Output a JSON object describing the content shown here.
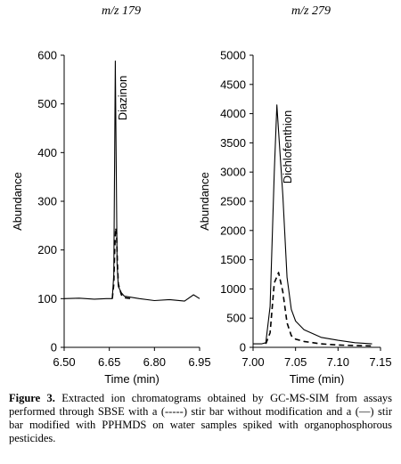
{
  "chart_data": [
    {
      "type": "line",
      "title": "m/z 179",
      "xlabel": "Time (min)",
      "ylabel": "Abundance",
      "xlim": [
        6.5,
        6.95
      ],
      "ylim": [
        0,
        600
      ],
      "xticks": [
        "6.50",
        "6.65",
        "6.80",
        "6.95"
      ],
      "xtick_values": [
        6.5,
        6.65,
        6.8,
        6.95
      ],
      "yticks": [
        "0",
        "100",
        "200",
        "300",
        "400",
        "500",
        "600"
      ],
      "ytick_values": [
        0,
        100,
        200,
        300,
        400,
        500,
        600
      ],
      "annotation": "Diazinon",
      "series": [
        {
          "style": "solid",
          "x": [
            6.5,
            6.55,
            6.6,
            6.64,
            6.66,
            6.665,
            6.668,
            6.67,
            6.673,
            6.676,
            6.68,
            6.69,
            6.7,
            6.75,
            6.8,
            6.85,
            6.9,
            6.93,
            6.95,
            6.97
          ],
          "y": [
            100,
            101,
            99,
            100,
            100,
            150,
            400,
            588,
            380,
            170,
            125,
            112,
            105,
            100,
            96,
            98,
            95,
            108,
            100,
            100
          ]
        },
        {
          "style": "dashed",
          "x": [
            6.66,
            6.665,
            6.668,
            6.671,
            6.674,
            6.677,
            6.68,
            6.69,
            6.7,
            6.72
          ],
          "y": [
            100,
            130,
            200,
            245,
            235,
            170,
            130,
            108,
            102,
            100
          ]
        }
      ]
    },
    {
      "type": "line",
      "title": "m/z 279",
      "xlabel": "Time (min)",
      "ylabel": "Abundance",
      "xlim": [
        7.0,
        7.15
      ],
      "ylim": [
        0,
        5000
      ],
      "xticks": [
        "7.00",
        "7.05",
        "7.10",
        "7.15"
      ],
      "xtick_values": [
        7.0,
        7.05,
        7.1,
        7.15
      ],
      "yticks": [
        "0",
        "500",
        "1000",
        "1500",
        "2000",
        "2500",
        "3000",
        "3500",
        "4000",
        "4500",
        "5000"
      ],
      "ytick_values": [
        0,
        500,
        1000,
        1500,
        2000,
        2500,
        3000,
        3500,
        4000,
        4500,
        5000
      ],
      "annotation": "Dichlofenthion",
      "series": [
        {
          "style": "solid",
          "x": [
            7.0,
            7.01,
            7.015,
            7.02,
            7.025,
            7.028,
            7.03,
            7.035,
            7.04,
            7.045,
            7.05,
            7.06,
            7.08,
            7.1,
            7.12,
            7.14
          ],
          "y": [
            60,
            60,
            80,
            700,
            3000,
            4150,
            3700,
            2600,
            1200,
            650,
            450,
            300,
            170,
            120,
            80,
            60
          ]
        },
        {
          "style": "dashed",
          "x": [
            7.015,
            7.02,
            7.025,
            7.03,
            7.035,
            7.04,
            7.045,
            7.05,
            7.06,
            7.08,
            7.1,
            7.12,
            7.14
          ],
          "y": [
            60,
            250,
            1100,
            1280,
            950,
            420,
            200,
            140,
            100,
            60,
            40,
            30,
            25
          ]
        }
      ]
    }
  ],
  "caption": {
    "label": "Figure 3.",
    "text": " Extracted ion chromatograms obtained by GC-MS-SIM from assays performed through SBSE with a (-----) stir bar without modification and a (—) stir bar modified with PPHMDS on water samples spiked with organophosphorous pesticides."
  }
}
